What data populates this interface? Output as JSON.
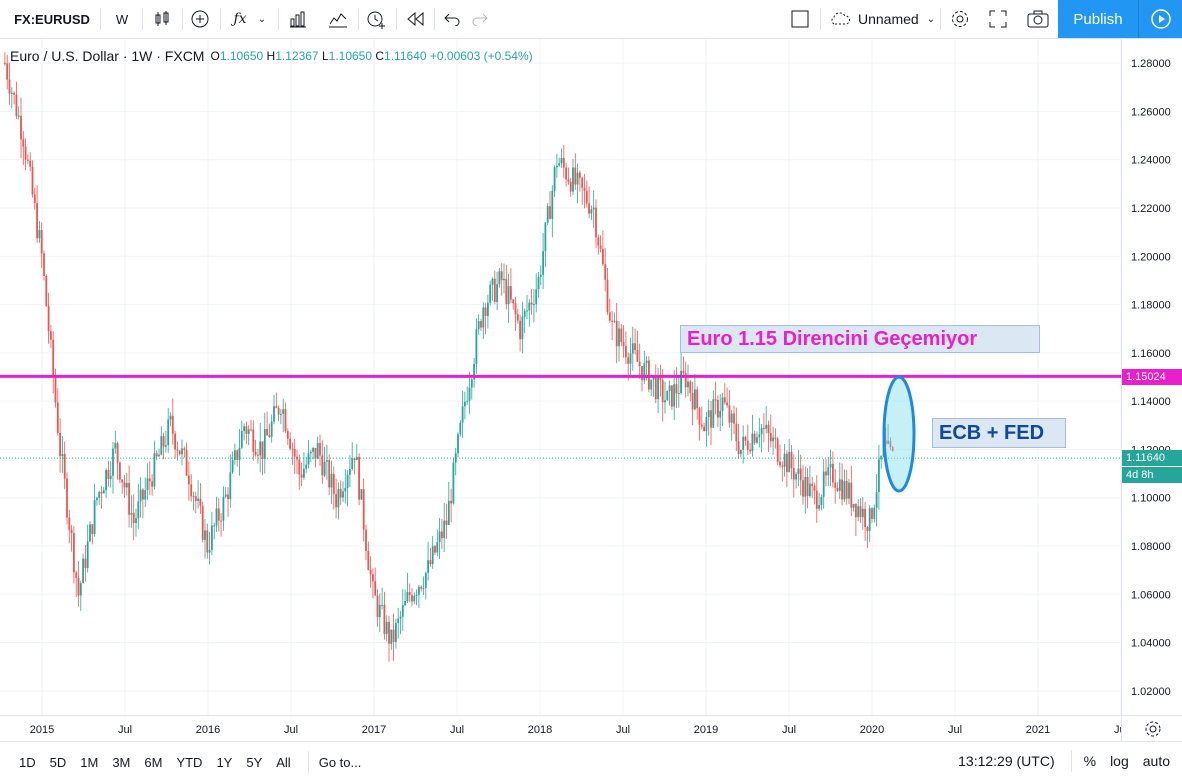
{
  "toolbar": {
    "symbol": "FX:EURUSD",
    "interval": "W",
    "layout_name": "Unnamed",
    "publish_label": "Publish"
  },
  "legend": {
    "title": "Euro / U.S. Dollar · 1W · FXCM",
    "open_label": "O",
    "open": "1.10650",
    "high_label": "H",
    "high": "1.12367",
    "low_label": "L",
    "low": "1.10650",
    "close_label": "C",
    "close": "1.11640",
    "change": "+0.00603 (+0.54%)"
  },
  "annotations": {
    "resistance_note": "Euro 1.15 Direncini Geçemiyor",
    "event_note": "ECB + FED"
  },
  "price_tags": {
    "resistance": "1.15024",
    "last": "1.11640",
    "countdown": "4d 8h"
  },
  "colors": {
    "up": "#26a69a",
    "down": "#ef5350",
    "resistance_line": "#e91ecc",
    "last_tag": "#26a69a",
    "highlight_ellipse": "#1e88e5"
  },
  "bottom": {
    "ranges": [
      "1D",
      "5D",
      "1M",
      "3M",
      "6M",
      "YTD",
      "1Y",
      "5Y",
      "All"
    ],
    "goto": "Go to...",
    "time": "13:12:29 (UTC)",
    "percent": "%",
    "log": "log",
    "auto": "auto"
  },
  "chart_data": {
    "type": "candlestick",
    "symbol": "FX:EURUSD",
    "ylim": [
      1.01,
      1.29
    ],
    "y_ticks": [
      "1.28000",
      "1.26000",
      "1.24000",
      "1.22000",
      "1.20000",
      "1.18000",
      "1.16000",
      "1.14000",
      "1.12000",
      "1.10000",
      "1.08000",
      "1.06000",
      "1.04000",
      "1.02000"
    ],
    "x_ticks": [
      "2015",
      "Jul",
      "2016",
      "Jul",
      "2017",
      "Jul",
      "2018",
      "Jul",
      "2019",
      "Jul",
      "2020",
      "Jul",
      "2021",
      "Jul"
    ],
    "resistance_level": 1.15024,
    "last_price": 1.1164,
    "approx_close_path": [
      [
        0,
        1.28
      ],
      [
        8,
        1.25
      ],
      [
        16,
        1.2
      ],
      [
        24,
        1.12
      ],
      [
        32,
        1.06
      ],
      [
        40,
        1.1
      ],
      [
        48,
        1.12
      ],
      [
        56,
        1.09
      ],
      [
        64,
        1.11
      ],
      [
        72,
        1.13
      ],
      [
        80,
        1.11
      ],
      [
        88,
        1.08
      ],
      [
        96,
        1.1
      ],
      [
        104,
        1.13
      ],
      [
        112,
        1.12
      ],
      [
        120,
        1.14
      ],
      [
        128,
        1.11
      ],
      [
        136,
        1.12
      ],
      [
        144,
        1.1
      ],
      [
        152,
        1.12
      ],
      [
        160,
        1.06
      ],
      [
        168,
        1.04
      ],
      [
        176,
        1.06
      ],
      [
        184,
        1.07
      ],
      [
        192,
        1.09
      ],
      [
        200,
        1.14
      ],
      [
        208,
        1.18
      ],
      [
        216,
        1.19
      ],
      [
        224,
        1.17
      ],
      [
        232,
        1.19
      ],
      [
        240,
        1.24
      ],
      [
        248,
        1.23
      ],
      [
        256,
        1.22
      ],
      [
        264,
        1.17
      ],
      [
        272,
        1.16
      ],
      [
        280,
        1.15
      ],
      [
        288,
        1.14
      ],
      [
        296,
        1.15
      ],
      [
        304,
        1.13
      ],
      [
        312,
        1.14
      ],
      [
        320,
        1.12
      ],
      [
        328,
        1.13
      ],
      [
        336,
        1.12
      ],
      [
        344,
        1.11
      ],
      [
        352,
        1.1
      ],
      [
        360,
        1.11
      ],
      [
        368,
        1.1
      ],
      [
        376,
        1.09
      ],
      [
        382,
        1.12
      ],
      [
        386,
        1.116
      ]
    ]
  }
}
